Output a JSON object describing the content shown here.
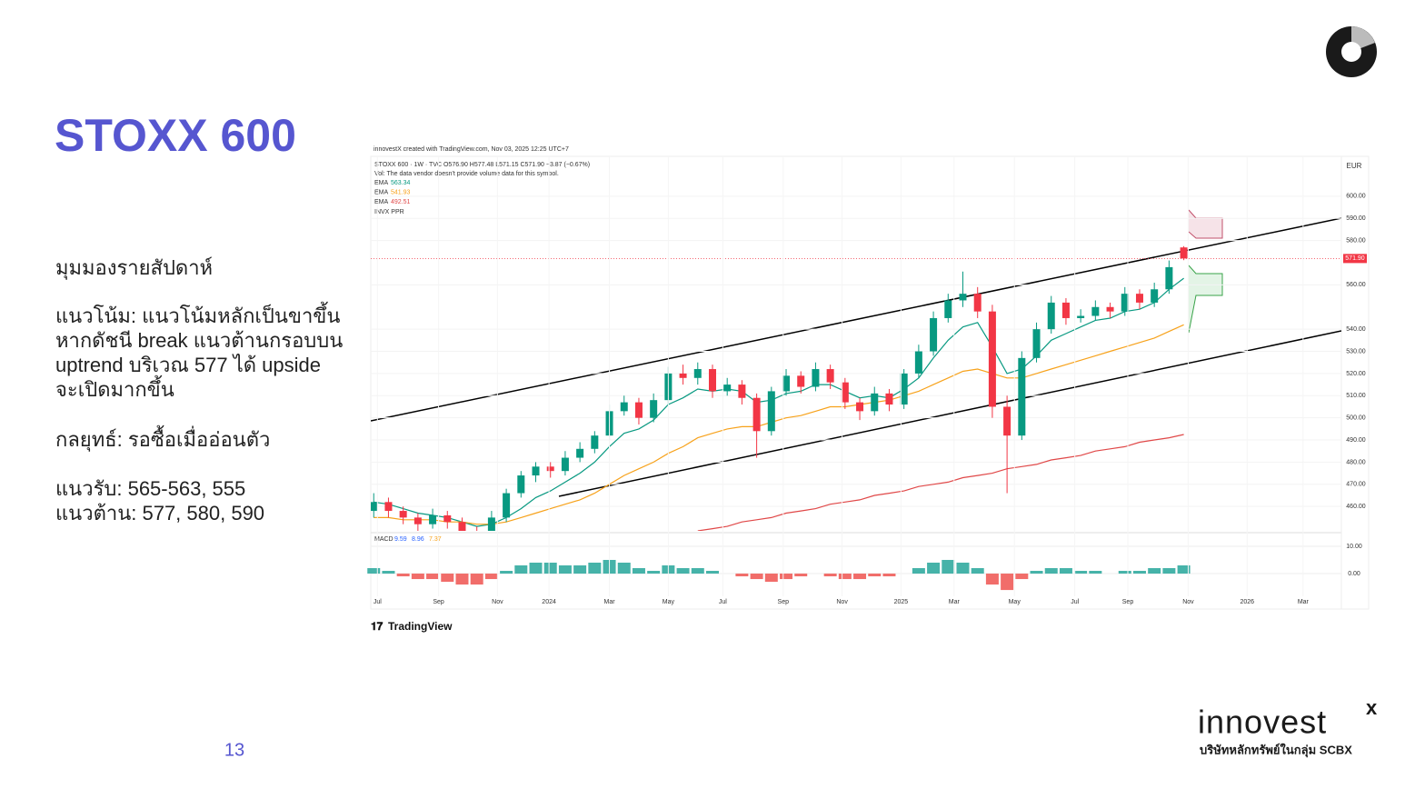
{
  "slide": {
    "title": "STOXX 600",
    "page": "13",
    "lines": [
      "มุมมองรายสัปดาห์",
      "แนวโน้ม: แนวโน้มหลักเป็นขาขึ้น",
      "หากดัชนี break แนวต้านกรอบบน",
      "uptrend บริเวณ 577 ได้ upside",
      "จะเปิดมากขึ้น",
      "กลยุทธ์: รอซื้อเมื่ออ่อนตัว",
      "แนวรับ: 565-563, 555",
      "แนวต้าน: 577, 580, 590"
    ]
  },
  "brand": {
    "name": "innovest",
    "mark": "x",
    "tagline": "บริษัทหลักทรัพย์ในกลุ่ม SCBX"
  },
  "chart_data": {
    "type": "candlestick",
    "credit": "innovestX created with TradingView.com, Nov 03, 2025 12:25 UTC+7",
    "symbol": "STOXX 600 · 1W · TVC  O576.90 H577.48 L571.15 C571.90 −3.87 (−0.67%)",
    "note": "Vol: The data vendor doesn't provide volume data for this symbol.",
    "study": "INVX PPR",
    "currency": "EUR",
    "footer": "TradingView",
    "last_price": {
      "value": 571.9,
      "label": "571.90"
    },
    "up_color": "#089981",
    "down_color": "#f23645",
    "xlim": [
      -0.2,
      65.7
    ],
    "ylim": [
      449,
      618
    ],
    "xticks": [
      {
        "value": 0.25,
        "label": "Jul"
      },
      {
        "value": 4.4,
        "label": "Sep"
      },
      {
        "value": 8.4,
        "label": "Nov"
      },
      {
        "value": 11.9,
        "label": "2024"
      },
      {
        "value": 16.0,
        "label": "Mar"
      },
      {
        "value": 20.0,
        "label": "May"
      },
      {
        "value": 23.7,
        "label": "Jul"
      },
      {
        "value": 27.8,
        "label": "Sep"
      },
      {
        "value": 31.8,
        "label": "Nov"
      },
      {
        "value": 35.8,
        "label": "2025"
      },
      {
        "value": 39.4,
        "label": "Mar"
      },
      {
        "value": 43.5,
        "label": "May"
      },
      {
        "value": 47.6,
        "label": "Jul"
      },
      {
        "value": 51.2,
        "label": "Sep"
      },
      {
        "value": 55.3,
        "label": "Nov"
      },
      {
        "value": 59.3,
        "label": "2026"
      },
      {
        "value": 63.1,
        "label": "Mar"
      }
    ],
    "yticks": [
      {
        "value": 600,
        "label": "600.00"
      },
      {
        "value": 590,
        "label": "590.00"
      },
      {
        "value": 580,
        "label": "580.00"
      },
      {
        "value": 560,
        "label": "560.00"
      },
      {
        "value": 540,
        "label": "540.00"
      },
      {
        "value": 530,
        "label": "530.00"
      },
      {
        "value": 520,
        "label": "520.00"
      },
      {
        "value": 510,
        "label": "510.00"
      },
      {
        "value": 500,
        "label": "500.00"
      },
      {
        "value": 490,
        "label": "490.00"
      },
      {
        "value": 480,
        "label": "480.00"
      },
      {
        "value": 470,
        "label": "470.00"
      },
      {
        "value": 460,
        "label": "460.00"
      }
    ],
    "ohlc": [
      [
        458,
        466,
        455,
        462
      ],
      [
        462,
        464,
        455,
        458
      ],
      [
        458,
        460,
        452,
        455
      ],
      [
        455,
        457,
        449,
        452
      ],
      [
        452,
        459,
        450,
        456
      ],
      [
        456,
        458,
        450,
        453
      ],
      [
        453,
        455,
        446,
        449
      ],
      [
        449,
        451,
        444,
        447
      ],
      [
        447,
        458,
        445,
        455
      ],
      [
        455,
        468,
        453,
        466
      ],
      [
        466,
        476,
        464,
        474
      ],
      [
        474,
        480,
        471,
        478
      ],
      [
        478,
        480,
        473,
        476
      ],
      [
        476,
        485,
        474,
        482
      ],
      [
        482,
        489,
        480,
        486
      ],
      [
        486,
        494,
        484,
        492
      ],
      [
        492,
        506,
        490,
        503
      ],
      [
        503,
        510,
        501,
        507
      ],
      [
        507,
        509,
        497,
        500
      ],
      [
        500,
        511,
        498,
        508
      ],
      [
        508,
        523,
        506,
        520
      ],
      [
        520,
        524,
        515,
        518
      ],
      [
        518,
        525,
        515,
        522
      ],
      [
        522,
        524,
        509,
        512
      ],
      [
        512,
        518,
        510,
        515
      ],
      [
        515,
        517,
        506,
        509
      ],
      [
        509,
        511,
        482,
        494
      ],
      [
        494,
        514,
        492,
        512
      ],
      [
        512,
        522,
        510,
        519
      ],
      [
        519,
        521,
        511,
        514
      ],
      [
        514,
        525,
        512,
        522
      ],
      [
        522,
        524,
        513,
        516
      ],
      [
        516,
        518,
        504,
        507
      ],
      [
        507,
        509,
        499,
        503
      ],
      [
        503,
        514,
        501,
        511
      ],
      [
        511,
        513,
        503,
        506
      ],
      [
        506,
        522,
        504,
        520
      ],
      [
        520,
        533,
        518,
        530
      ],
      [
        530,
        548,
        528,
        545
      ],
      [
        545,
        556,
        543,
        553
      ],
      [
        553,
        566,
        550,
        556
      ],
      [
        556,
        559,
        545,
        548
      ],
      [
        548,
        551,
        500,
        505
      ],
      [
        505,
        510,
        466,
        492
      ],
      [
        492,
        530,
        490,
        527
      ],
      [
        527,
        543,
        525,
        540
      ],
      [
        540,
        555,
        538,
        552
      ],
      [
        552,
        554,
        542,
        545
      ],
      [
        545,
        549,
        543,
        546
      ],
      [
        546,
        553,
        544,
        550
      ],
      [
        550,
        552,
        545,
        548
      ],
      [
        548,
        559,
        546,
        556
      ],
      [
        556,
        558,
        549,
        552
      ],
      [
        552,
        561,
        550,
        558
      ],
      [
        558,
        571,
        556,
        568
      ],
      [
        576.9,
        577.48,
        571.15,
        571.9
      ]
    ],
    "series": [
      {
        "name": "EMA",
        "color": "#089981",
        "last": 563.34,
        "values": [
          462,
          461,
          459,
          457,
          456,
          455,
          453,
          451,
          452,
          455,
          459,
          464,
          467,
          471,
          475,
          480,
          487,
          493,
          495,
          499,
          506,
          509,
          513,
          512,
          513,
          512,
          507,
          508,
          511,
          512,
          515,
          515,
          512,
          509,
          510,
          509,
          513,
          518,
          527,
          535,
          541,
          543,
          532,
          520,
          522,
          528,
          535,
          538,
          541,
          544,
          545,
          548,
          549,
          552,
          558,
          563
        ]
      },
      {
        "name": "EMA",
        "color": "#f7a21b",
        "last": 541.93,
        "values": [
          455,
          455,
          454,
          454,
          454,
          453,
          453,
          452,
          452,
          453,
          455,
          457,
          459,
          461,
          463,
          466,
          470,
          474,
          477,
          480,
          484,
          487,
          491,
          493,
          495,
          496,
          496,
          498,
          500,
          501,
          503,
          505,
          505,
          506,
          507,
          508,
          510,
          512,
          515,
          518,
          521,
          522,
          520,
          518,
          518,
          520,
          522,
          524,
          526,
          528,
          530,
          532,
          534,
          536,
          539,
          542
        ]
      },
      {
        "name": "EMA",
        "color": "#e04848",
        "last": 492.51,
        "values": [
          null,
          null,
          null,
          null,
          null,
          null,
          null,
          null,
          null,
          null,
          null,
          null,
          null,
          null,
          null,
          null,
          null,
          null,
          null,
          null,
          null,
          null,
          449,
          450,
          451,
          453,
          454,
          455,
          457,
          458,
          459,
          461,
          462,
          463,
          465,
          466,
          467,
          469,
          470,
          471,
          473,
          474,
          475,
          477,
          478,
          479,
          481,
          482,
          483,
          485,
          486,
          487,
          489,
          490,
          491,
          492.5
        ]
      }
    ],
    "macd": {
      "name": "MACD",
      "readings": [
        9.59,
        8.96,
        7.37
      ],
      "reading_colors": [
        "#2962ff",
        "#2962ff",
        "#f7a21b"
      ],
      "ylim": [
        -8.3,
        14.3
      ],
      "yticks": [
        {
          "value": 10,
          "label": "10.00"
        },
        {
          "value": 0,
          "label": "0.00"
        }
      ],
      "histogram": [
        2,
        1,
        -1,
        -2,
        -2,
        -3,
        -4,
        -4,
        -2,
        1,
        3,
        4,
        4,
        3,
        3,
        4,
        5,
        4,
        2,
        1,
        3,
        2,
        2,
        1,
        0,
        -1,
        -2,
        -3,
        -2,
        -1,
        0,
        -1,
        -2,
        -2,
        -1,
        -1,
        0,
        2,
        4,
        5,
        4,
        2,
        -4,
        -6,
        -2,
        1,
        2,
        2,
        1,
        1,
        0,
        1,
        1,
        2,
        2,
        3
      ]
    }
  }
}
